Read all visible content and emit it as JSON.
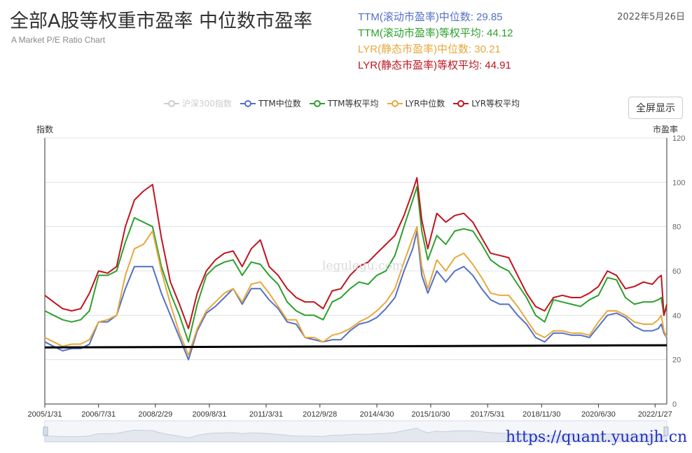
{
  "header": {
    "title": "全部A股等权重市盈率 中位数市盈率",
    "subtitle": "A Market P/E Ratio Chart",
    "date": "2022年5月26日",
    "url": "https://quant.yuanjh.cn",
    "watermark": "legulegu.com",
    "fullscreen_label": "全屏显示"
  },
  "stats": [
    {
      "label": "TTM(滚动市盈率)中位数:",
      "value": "29.85",
      "color": "#5470c6"
    },
    {
      "label": "TTM(滚动市盈率)等权平均:",
      "value": "44.12",
      "color": "#2ca02c"
    },
    {
      "label": "LYR(静态市盈率)中位数:",
      "value": "30.21",
      "color": "#e6a93c"
    },
    {
      "label": "LYR(静态市盈率)等权平均:",
      "value": "44.91",
      "color": "#c0141e"
    }
  ],
  "chart_data": {
    "type": "line",
    "left_axis_label": "指数",
    "right_axis_label": "市盈率",
    "ylim": [
      0,
      120
    ],
    "y_ticks": [
      0,
      20,
      40,
      60,
      80,
      100,
      120
    ],
    "x_range": [
      "2005/1/31",
      "2022/5/26"
    ],
    "x_tick_labels": [
      "2005/1/31",
      "2006/7/31",
      "2008/2/29",
      "2009/8/31",
      "2011/3/31",
      "2012/9/28",
      "2014/4/30",
      "2015/10/30",
      "2017/5/31",
      "2018/11/30",
      "2020/6/30",
      "2022/1/27"
    ],
    "reference_line": {
      "value_start": 25.5,
      "value_end": 26.5,
      "color": "#000000"
    },
    "grid": true,
    "legend_position": "top-center",
    "series": [
      {
        "name": "沪深300指数",
        "color": "#cccccc",
        "hidden": true,
        "values": []
      },
      {
        "name": "TTM中位数",
        "color": "#5470c6",
        "x": [
          "2005/1/31",
          "2005/4/30",
          "2005/7/31",
          "2005/10/31",
          "2006/1/31",
          "2006/4/30",
          "2006/7/31",
          "2006/10/31",
          "2007/1/31",
          "2007/4/30",
          "2007/7/31",
          "2007/10/31",
          "2008/1/31",
          "2008/4/30",
          "2008/7/31",
          "2008/10/31",
          "2009/1/31",
          "2009/4/30",
          "2009/7/31",
          "2009/10/31",
          "2010/1/31",
          "2010/4/30",
          "2010/7/31",
          "2010/10/31",
          "2011/1/31",
          "2011/4/30",
          "2011/7/31",
          "2011/10/31",
          "2012/1/31",
          "2012/4/30",
          "2012/7/31",
          "2012/10/31",
          "2013/1/31",
          "2013/4/30",
          "2013/7/31",
          "2013/10/31",
          "2014/1/31",
          "2014/4/30",
          "2014/7/31",
          "2014/10/31",
          "2015/1/31",
          "2015/4/30",
          "2015/6/12",
          "2015/7/31",
          "2015/9/30",
          "2015/12/31",
          "2016/3/31",
          "2016/6/30",
          "2016/9/30",
          "2016/12/31",
          "2017/3/31",
          "2017/6/30",
          "2017/9/30",
          "2017/12/31",
          "2018/3/31",
          "2018/6/30",
          "2018/9/30",
          "2018/12/31",
          "2019/3/31",
          "2019/6/30",
          "2019/9/30",
          "2019/12/31",
          "2020/3/31",
          "2020/6/30",
          "2020/9/30",
          "2020/12/31",
          "2021/3/31",
          "2021/6/30",
          "2021/9/30",
          "2021/12/31",
          "2022/2/28",
          "2022/3/31",
          "2022/4/27",
          "2022/5/26"
        ],
        "values": [
          28,
          26,
          24,
          25,
          25,
          27,
          37,
          37,
          40,
          52,
          62,
          62,
          62,
          50,
          40,
          30,
          20,
          33,
          41,
          44,
          48,
          52,
          45,
          52,
          52,
          47,
          43,
          37,
          36,
          30,
          29,
          28,
          29,
          29,
          33,
          36,
          37,
          39,
          43,
          48,
          60,
          70,
          78,
          58,
          50,
          60,
          55,
          60,
          62,
          58,
          52,
          47,
          45,
          45,
          40,
          36,
          30,
          28,
          32,
          32,
          31,
          31,
          30,
          35,
          40,
          41,
          39,
          35,
          33,
          33,
          34,
          36,
          32,
          29.85
        ]
      },
      {
        "name": "TTM等权平均",
        "color": "#2ca02c",
        "x": [
          "2005/1/31",
          "2005/4/30",
          "2005/7/31",
          "2005/10/31",
          "2006/1/31",
          "2006/4/30",
          "2006/7/31",
          "2006/10/31",
          "2007/1/31",
          "2007/4/30",
          "2007/7/31",
          "2007/10/31",
          "2008/1/31",
          "2008/4/30",
          "2008/7/31",
          "2008/10/31",
          "2009/1/31",
          "2009/4/30",
          "2009/7/31",
          "2009/10/31",
          "2010/1/31",
          "2010/4/30",
          "2010/7/31",
          "2010/10/31",
          "2011/1/31",
          "2011/4/30",
          "2011/7/31",
          "2011/10/31",
          "2012/1/31",
          "2012/4/30",
          "2012/7/31",
          "2012/10/31",
          "2013/1/31",
          "2013/4/30",
          "2013/7/31",
          "2013/10/31",
          "2014/1/31",
          "2014/4/30",
          "2014/7/31",
          "2014/10/31",
          "2015/1/31",
          "2015/4/30",
          "2015/6/12",
          "2015/7/31",
          "2015/9/30",
          "2015/12/31",
          "2016/3/31",
          "2016/6/30",
          "2016/9/30",
          "2016/12/31",
          "2017/3/31",
          "2017/6/30",
          "2017/9/30",
          "2017/12/31",
          "2018/3/31",
          "2018/6/30",
          "2018/9/30",
          "2018/12/31",
          "2019/3/31",
          "2019/6/30",
          "2019/9/30",
          "2019/12/31",
          "2020/3/31",
          "2020/6/30",
          "2020/9/30",
          "2020/12/31",
          "2021/3/31",
          "2021/6/30",
          "2021/9/30",
          "2021/12/31",
          "2022/2/28",
          "2022/3/31",
          "2022/4/27",
          "2022/5/26"
        ],
        "values": [
          42,
          40,
          38,
          37,
          38,
          42,
          58,
          58,
          60,
          73,
          84,
          82,
          80,
          62,
          50,
          40,
          28,
          45,
          58,
          62,
          64,
          65,
          58,
          64,
          63,
          58,
          54,
          46,
          42,
          40,
          40,
          38,
          46,
          48,
          52,
          55,
          54,
          58,
          60,
          67,
          80,
          92,
          98,
          78,
          65,
          76,
          72,
          78,
          79,
          78,
          72,
          65,
          62,
          60,
          54,
          48,
          40,
          37,
          47,
          46,
          45,
          44,
          47,
          49,
          57,
          56,
          48,
          45,
          46,
          46,
          47,
          48,
          40,
          44.12
        ]
      },
      {
        "name": "LYR中位数",
        "color": "#e6a93c",
        "x": [
          "2005/1/31",
          "2005/4/30",
          "2005/7/31",
          "2005/10/31",
          "2006/1/31",
          "2006/4/30",
          "2006/7/31",
          "2006/10/31",
          "2007/1/31",
          "2007/4/30",
          "2007/7/31",
          "2007/10/31",
          "2008/1/31",
          "2008/4/30",
          "2008/7/31",
          "2008/10/31",
          "2009/1/31",
          "2009/4/30",
          "2009/7/31",
          "2009/10/31",
          "2010/1/31",
          "2010/4/30",
          "2010/7/31",
          "2010/10/31",
          "2011/1/31",
          "2011/4/30",
          "2011/7/31",
          "2011/10/31",
          "2012/1/31",
          "2012/4/30",
          "2012/7/31",
          "2012/10/31",
          "2013/1/31",
          "2013/4/30",
          "2013/7/31",
          "2013/10/31",
          "2014/1/31",
          "2014/4/30",
          "2014/7/31",
          "2014/10/31",
          "2015/1/31",
          "2015/4/30",
          "2015/6/12",
          "2015/7/31",
          "2015/9/30",
          "2015/12/31",
          "2016/3/31",
          "2016/6/30",
          "2016/9/30",
          "2016/12/31",
          "2017/3/31",
          "2017/6/30",
          "2017/9/30",
          "2017/12/31",
          "2018/3/31",
          "2018/6/30",
          "2018/9/30",
          "2018/12/31",
          "2019/3/31",
          "2019/6/30",
          "2019/9/30",
          "2019/12/31",
          "2020/3/31",
          "2020/6/30",
          "2020/9/30",
          "2020/12/31",
          "2021/3/31",
          "2021/6/30",
          "2021/9/30",
          "2021/12/31",
          "2022/2/28",
          "2022/3/31",
          "2022/4/27",
          "2022/5/26"
        ],
        "values": [
          30,
          28,
          26,
          27,
          27,
          29,
          37,
          38,
          40,
          58,
          70,
          72,
          78,
          60,
          45,
          32,
          22,
          34,
          42,
          46,
          50,
          52,
          46,
          54,
          55,
          50,
          44,
          38,
          38,
          30,
          30,
          28,
          31,
          32,
          34,
          37,
          39,
          42,
          46,
          52,
          64,
          75,
          80,
          62,
          52,
          65,
          60,
          66,
          68,
          63,
          57,
          50,
          49,
          49,
          44,
          38,
          32,
          30,
          33,
          33,
          32,
          32,
          31,
          37,
          42,
          42,
          40,
          37,
          36,
          36,
          38,
          40,
          33,
          30.21
        ]
      },
      {
        "name": "LYR等权平均",
        "color": "#c0141e",
        "x": [
          "2005/1/31",
          "2005/4/30",
          "2005/7/31",
          "2005/10/31",
          "2006/1/31",
          "2006/4/30",
          "2006/7/31",
          "2006/10/31",
          "2007/1/31",
          "2007/4/30",
          "2007/7/31",
          "2007/10/31",
          "2008/1/31",
          "2008/4/30",
          "2008/7/31",
          "2008/10/31",
          "2009/1/31",
          "2009/4/30",
          "2009/7/31",
          "2009/10/31",
          "2010/1/31",
          "2010/4/30",
          "2010/7/31",
          "2010/10/31",
          "2011/1/31",
          "2011/4/30",
          "2011/7/31",
          "2011/10/31",
          "2012/1/31",
          "2012/4/30",
          "2012/7/31",
          "2012/10/31",
          "2013/1/31",
          "2013/4/30",
          "2013/7/31",
          "2013/10/31",
          "2014/1/31",
          "2014/4/30",
          "2014/7/31",
          "2014/10/31",
          "2015/1/31",
          "2015/4/30",
          "2015/6/12",
          "2015/7/31",
          "2015/9/30",
          "2015/12/31",
          "2016/3/31",
          "2016/6/30",
          "2016/9/30",
          "2016/12/31",
          "2017/3/31",
          "2017/6/30",
          "2017/9/30",
          "2017/12/31",
          "2018/3/31",
          "2018/6/30",
          "2018/9/30",
          "2018/12/31",
          "2019/3/31",
          "2019/6/30",
          "2019/9/30",
          "2019/12/31",
          "2020/3/31",
          "2020/6/30",
          "2020/9/30",
          "2020/12/31",
          "2021/3/31",
          "2021/6/30",
          "2021/9/30",
          "2021/12/31",
          "2022/2/28",
          "2022/3/31",
          "2022/4/27",
          "2022/5/26"
        ],
        "values": [
          49,
          46,
          43,
          42,
          43,
          50,
          60,
          59,
          62,
          80,
          92,
          96,
          99,
          75,
          55,
          45,
          34,
          50,
          60,
          65,
          68,
          69,
          62,
          70,
          74,
          62,
          58,
          52,
          48,
          46,
          46,
          43,
          51,
          52,
          58,
          62,
          64,
          68,
          72,
          76,
          85,
          96,
          102,
          83,
          70,
          86,
          82,
          85,
          86,
          82,
          75,
          68,
          67,
          66,
          58,
          50,
          44,
          42,
          48,
          49,
          48,
          48,
          50,
          53,
          60,
          58,
          52,
          53,
          55,
          54,
          57,
          58,
          40,
          44.91
        ]
      }
    ]
  }
}
